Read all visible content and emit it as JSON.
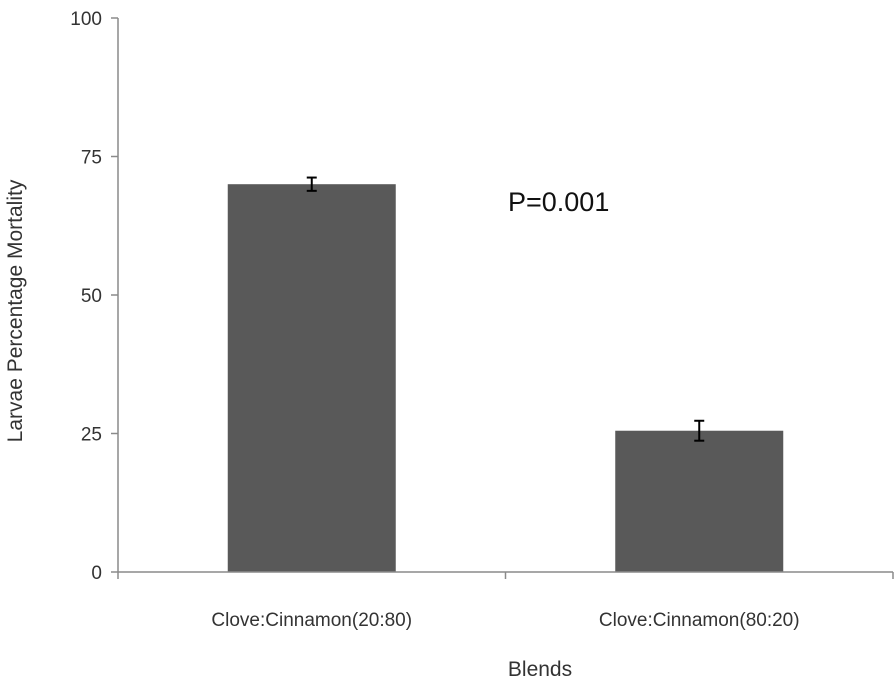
{
  "chart_data": {
    "type": "bar",
    "title": "",
    "xlabel": "Blends",
    "ylabel": "Larvae Percentage Mortality",
    "categories": [
      "Clove:Cinnamon(20:80)",
      "Clove:Cinnamon(80:20)"
    ],
    "values": [
      70,
      25.5
    ],
    "errors": [
      1.2,
      1.8
    ],
    "ylim": [
      0,
      100
    ],
    "yticks": [
      0,
      25,
      50,
      75,
      100
    ],
    "grid": false,
    "legend": "none",
    "annotation": "P=0.001",
    "colors": {
      "bar": "#595959",
      "axis": "#8a8a8a",
      "error": "#000000"
    }
  }
}
